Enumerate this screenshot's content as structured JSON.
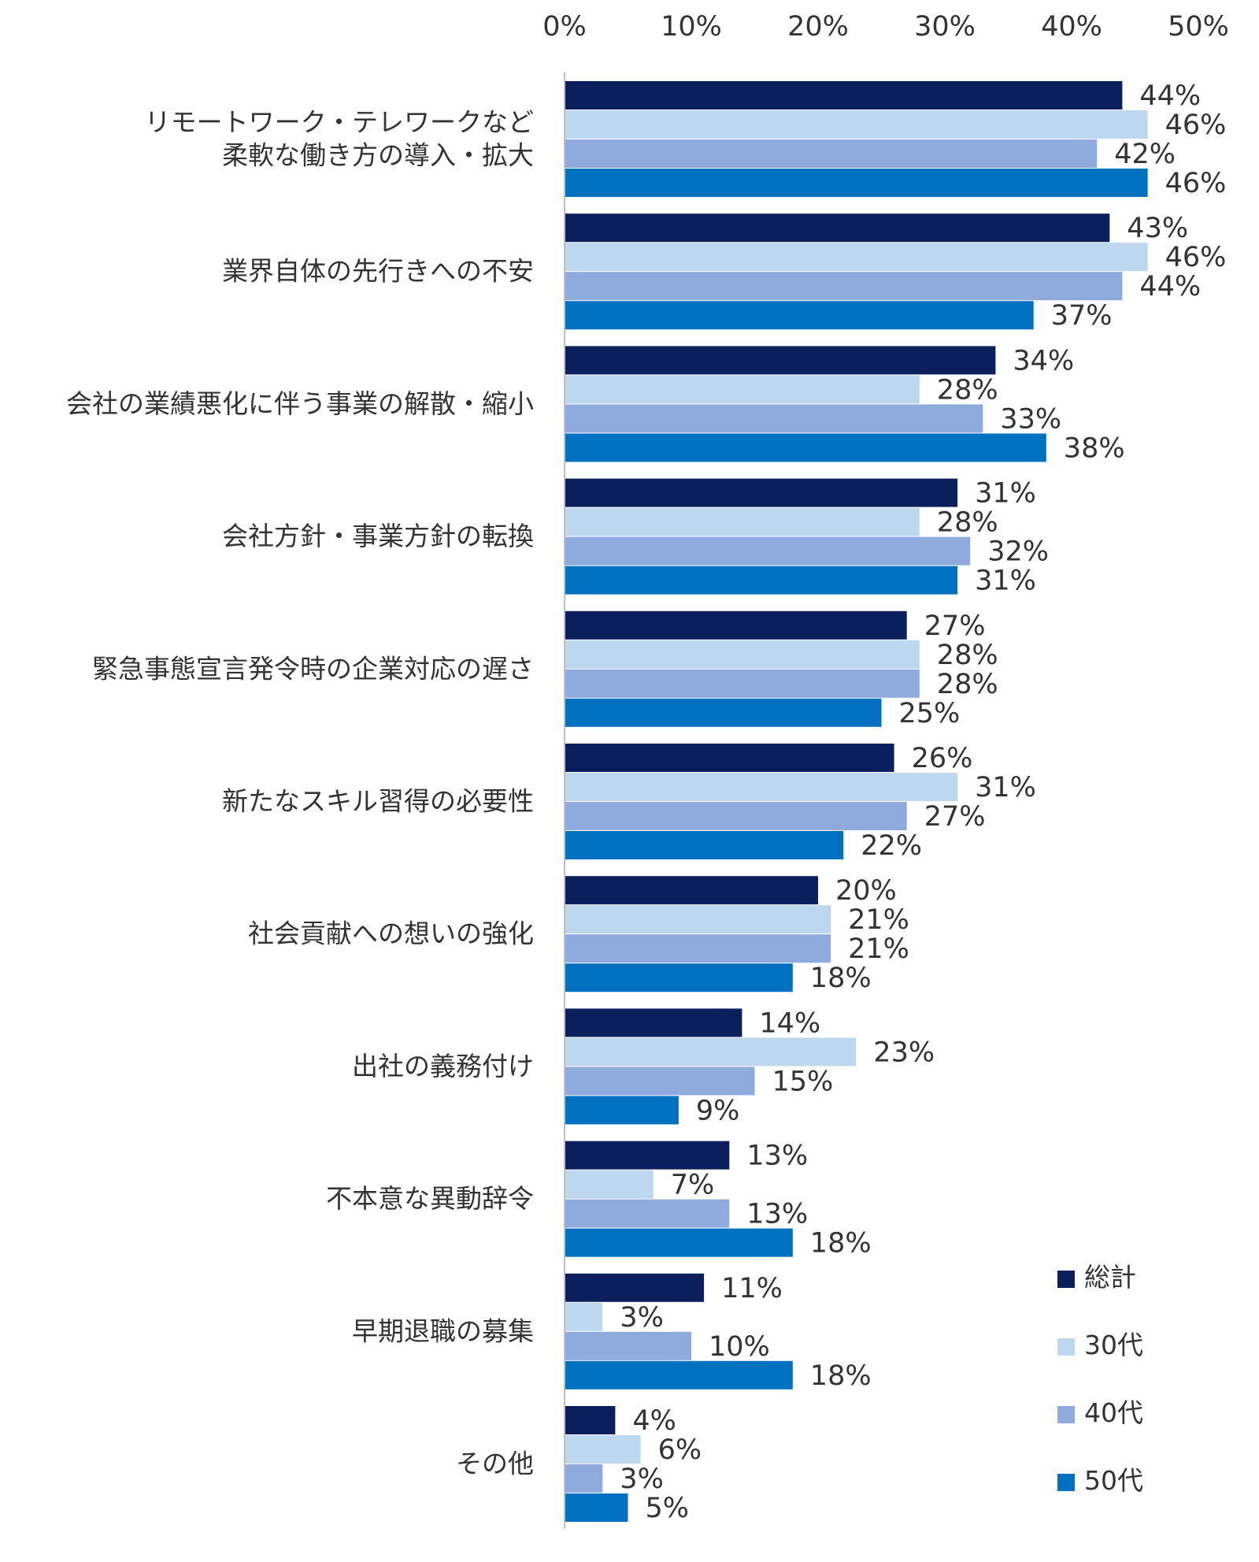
{
  "chart_data": {
    "type": "bar",
    "orientation": "horizontal",
    "title": "",
    "xlabel": "",
    "ylabel": "",
    "xlim": [
      0,
      50
    ],
    "x_ticks": [
      "0%",
      "10%",
      "20%",
      "30%",
      "40%",
      "50%"
    ],
    "grid": false,
    "legend_position": "bottom-right",
    "categories": [
      [
        "リモートワーク・テレワークなど",
        "柔軟な働き方の導入・拡大"
      ],
      [
        "業界自体の先行きへの不安"
      ],
      [
        "会社の業績悪化に伴う事業の解散・縮小"
      ],
      [
        "会社方針・事業方針の転換"
      ],
      [
        "緊急事態宣言発令時の企業対応の遅さ"
      ],
      [
        "新たなスキル習得の必要性"
      ],
      [
        "社会貢献への想いの強化"
      ],
      [
        "出社の義務付け"
      ],
      [
        "不本意な異動辞令"
      ],
      [
        "早期退職の募集"
      ],
      [
        "その他"
      ]
    ],
    "series": [
      {
        "name": "総計",
        "color": "#0a1f5c",
        "values": [
          44,
          43,
          34,
          31,
          27,
          26,
          20,
          14,
          13,
          11,
          4
        ]
      },
      {
        "name": "30代",
        "color": "#bdd7ee",
        "values": [
          46,
          46,
          28,
          28,
          28,
          31,
          21,
          23,
          7,
          3,
          6
        ]
      },
      {
        "name": "40代",
        "color": "#8faadc",
        "values": [
          42,
          44,
          33,
          32,
          28,
          27,
          21,
          15,
          13,
          10,
          3
        ]
      },
      {
        "name": "50代",
        "color": "#0070c0",
        "values": [
          46,
          37,
          38,
          31,
          25,
          22,
          18,
          9,
          18,
          18,
          5
        ]
      }
    ],
    "value_suffix": "%"
  }
}
